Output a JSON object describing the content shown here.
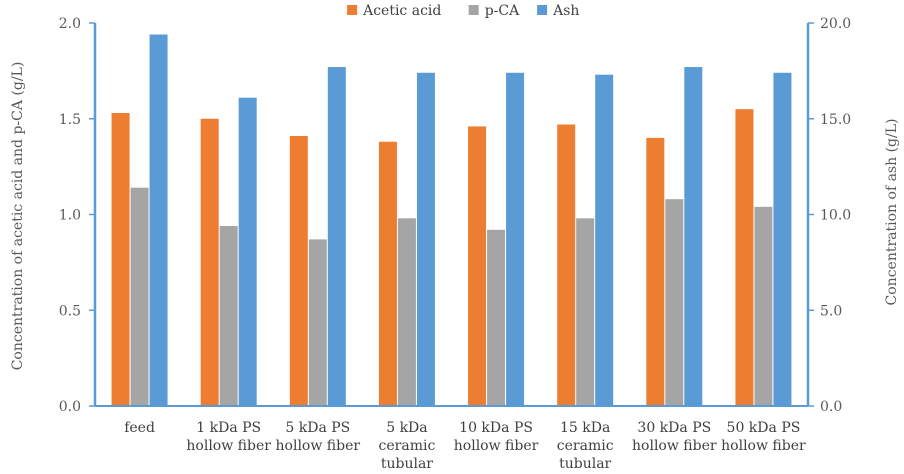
{
  "chart_data": {
    "type": "bar",
    "categories": [
      [
        "feed"
      ],
      [
        "1 kDa PS",
        "hollow fiber"
      ],
      [
        "5 kDa PS",
        "hollow fiber"
      ],
      [
        "5 kDa",
        "ceramic",
        "tubular"
      ],
      [
        "10 kDa PS",
        "hollow fiber"
      ],
      [
        "15 kDa",
        "ceramic",
        "tubular"
      ],
      [
        "30 kDa PS",
        "hollow fiber"
      ],
      [
        "50 kDa PS",
        "hollow fiber"
      ]
    ],
    "series": [
      {
        "name": "Acetic acid",
        "axis": "left",
        "color": "#ED7D31",
        "values": [
          1.53,
          1.5,
          1.41,
          1.38,
          1.46,
          1.47,
          1.4,
          1.55
        ]
      },
      {
        "name": "p-CA",
        "axis": "left",
        "color": "#A5A5A5",
        "values": [
          1.14,
          0.94,
          0.87,
          0.98,
          0.92,
          0.98,
          1.08,
          1.04
        ]
      },
      {
        "name": "Ash",
        "axis": "right",
        "color": "#5B9BD5",
        "values": [
          19.4,
          16.1,
          17.7,
          17.4,
          17.4,
          17.3,
          17.7,
          17.4
        ]
      }
    ],
    "ylabel": "Concentration of acetic acid and p-CA (g/L)",
    "y2label": "Concentration of ash (g/L)",
    "ylim": [
      0,
      2.0
    ],
    "y2lim": [
      0,
      20.0
    ],
    "yticks": [
      "0.0",
      "0.5",
      "1.0",
      "1.5",
      "2.0"
    ],
    "y2ticks": [
      "0.0",
      "5.0",
      "10.0",
      "15.0",
      "20.0"
    ],
    "legend_position": "top-center",
    "grid": false
  }
}
